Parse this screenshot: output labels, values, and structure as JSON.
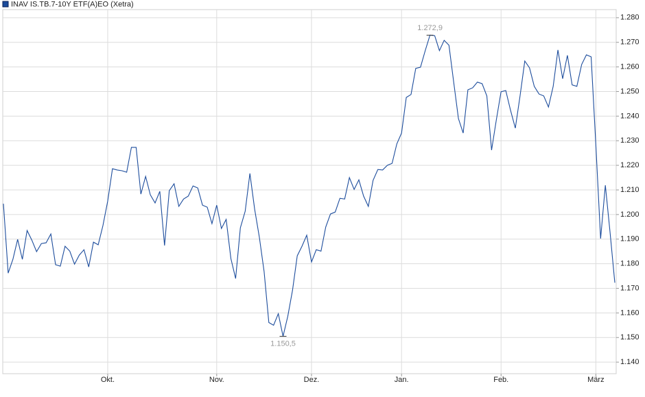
{
  "chart_data": {
    "type": "line",
    "legend": "INAV IS.TB.7-10Y ETF(A)EO (Xetra)",
    "color": "#1c4c9c",
    "grid": true,
    "ylim": [
      1.1353,
      1.2833
    ],
    "yticks": [
      {
        "value": 1.14,
        "label": "1.140"
      },
      {
        "value": 1.15,
        "label": "1.150"
      },
      {
        "value": 1.16,
        "label": "1.160"
      },
      {
        "value": 1.17,
        "label": "1.170"
      },
      {
        "value": 1.18,
        "label": "1.180"
      },
      {
        "value": 1.19,
        "label": "1.190"
      },
      {
        "value": 1.2,
        "label": "1.200"
      },
      {
        "value": 1.21,
        "label": "1.210"
      },
      {
        "value": 1.22,
        "label": "1.220"
      },
      {
        "value": 1.23,
        "label": "1.230"
      },
      {
        "value": 1.24,
        "label": "1.240"
      },
      {
        "value": 1.25,
        "label": "1.250"
      },
      {
        "value": 1.26,
        "label": "1.260"
      },
      {
        "value": 1.27,
        "label": "1.270"
      },
      {
        "value": 1.28,
        "label": "1.280"
      }
    ],
    "categories": [
      null,
      null,
      null,
      null,
      null,
      null,
      null,
      null,
      null,
      null,
      null,
      null,
      null,
      null,
      null,
      null,
      null,
      null,
      null,
      null,
      null,
      null,
      "Okt.",
      null,
      null,
      null,
      null,
      null,
      null,
      null,
      null,
      null,
      null,
      null,
      null,
      null,
      null,
      null,
      null,
      null,
      null,
      null,
      null,
      null,
      null,
      "Nov.",
      null,
      null,
      null,
      null,
      null,
      null,
      null,
      null,
      null,
      null,
      null,
      null,
      null,
      null,
      null,
      null,
      null,
      null,
      null,
      "Dez.",
      null,
      null,
      null,
      null,
      null,
      null,
      null,
      null,
      null,
      null,
      null,
      null,
      null,
      null,
      null,
      null,
      null,
      null,
      "Jan.",
      null,
      null,
      null,
      null,
      null,
      null,
      null,
      null,
      null,
      null,
      null,
      null,
      null,
      null,
      null,
      null,
      null,
      null,
      null,
      null,
      "Feb.",
      null,
      null,
      null,
      null,
      null,
      null,
      null,
      null,
      null,
      null,
      null,
      null,
      null,
      null,
      null,
      null,
      null,
      null,
      null,
      "März",
      null,
      null,
      null,
      null
    ],
    "values": [
      1.2044,
      1.1762,
      1.1818,
      1.1899,
      1.1818,
      1.1935,
      1.1896,
      1.1849,
      1.1882,
      1.1885,
      1.1921,
      1.1796,
      1.179,
      1.1871,
      1.1851,
      1.1798,
      1.1835,
      1.1857,
      1.1787,
      1.1888,
      1.1877,
      1.1955,
      1.2055,
      1.2186,
      1.2181,
      1.2178,
      1.2172,
      1.2273,
      1.2273,
      1.2083,
      1.2155,
      1.208,
      1.2047,
      1.2094,
      1.1874,
      1.2097,
      1.2125,
      1.2033,
      1.2063,
      1.2075,
      1.2116,
      1.2108,
      1.2038,
      1.203,
      1.1963,
      1.2038,
      1.1943,
      1.198,
      1.1821,
      1.174,
      1.1946,
      1.2013,
      1.2167,
      1.2022,
      1.1907,
      1.1768,
      1.1561,
      1.155,
      1.1597,
      1.1505,
      1.1586,
      1.1692,
      1.1832,
      1.1871,
      1.1916,
      1.1807,
      1.1857,
      1.1851,
      1.1949,
      1.2002,
      1.201,
      1.2066,
      1.2063,
      1.215,
      1.2102,
      1.2141,
      1.2075,
      1.2033,
      1.2139,
      1.2183,
      1.2181,
      1.22,
      1.2208,
      1.2287,
      1.2331,
      1.2476,
      1.2488,
      1.2594,
      1.2599,
      1.2666,
      1.2729,
      1.2727,
      1.2666,
      1.2708,
      1.2688,
      1.2538,
      1.239,
      1.2331,
      1.2507,
      1.2515,
      1.2538,
      1.2532,
      1.2482,
      1.2262,
      1.2384,
      1.2499,
      1.2504,
      1.2424,
      1.2351,
      1.2482,
      1.2624,
      1.2596,
      1.2521,
      1.249,
      1.2482,
      1.2437,
      1.2521,
      1.2669,
      1.2552,
      1.2647,
      1.2527,
      1.2521,
      1.261,
      1.2649,
      1.2641,
      1.2281,
      1.1902,
      1.2119,
      1.1927,
      1.1723
    ],
    "annotations": [
      {
        "value": 1.2729,
        "label": "1.272,9"
      },
      {
        "value": 1.1505,
        "label": "1.150,5"
      }
    ]
  }
}
